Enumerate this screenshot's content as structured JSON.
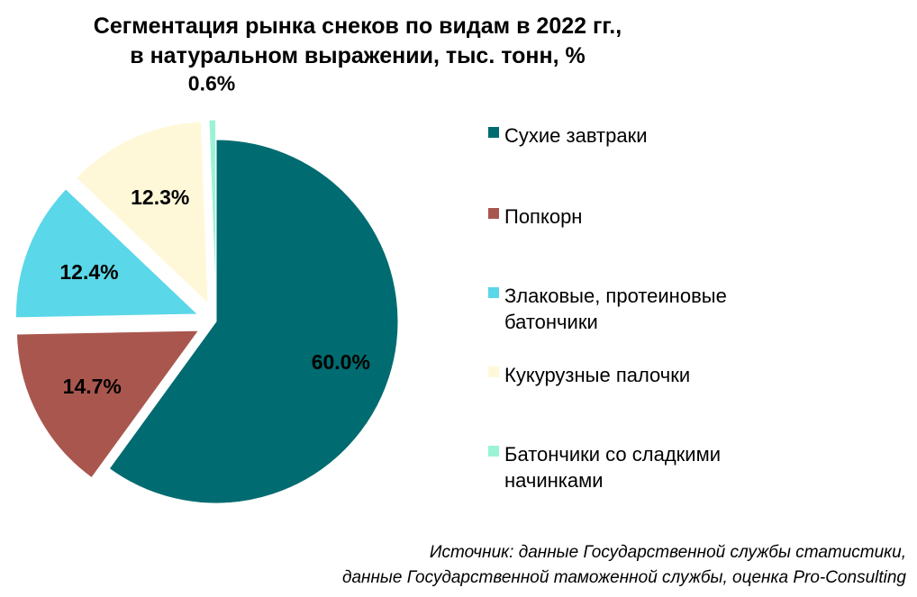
{
  "chart_data": {
    "type": "pie",
    "title_lines": [
      "Сегментация рынка снеков по видам в 2022 гг.,",
      "в натуральном выражении, тыс. тонн, %"
    ],
    "slices": [
      {
        "name": "Сухие завтраки",
        "value": 60.0,
        "label": "60.0%",
        "color": "#006B70",
        "exploded": false,
        "legend_lines": [
          "Сухие завтраки"
        ]
      },
      {
        "name": "Попкорн",
        "value": 14.7,
        "label": "14.7%",
        "color": "#A9574E",
        "exploded": true,
        "legend_lines": [
          "Попкорн"
        ]
      },
      {
        "name": "Злаковые, протеиновые батончики",
        "value": 12.4,
        "label": "12.4%",
        "color": "#5AD7E8",
        "exploded": true,
        "legend_lines": [
          "Злаковые, протеиновые",
          "батончики"
        ]
      },
      {
        "name": "Кукурузные палочки",
        "value": 12.3,
        "label": "12.3%",
        "color": "#FFF8D8",
        "exploded": true,
        "legend_lines": [
          "Кукурузные палочки"
        ]
      },
      {
        "name": "Батончики со сладкими начинками",
        "value": 0.6,
        "label": "0.6%",
        "color": "#9BF3D6",
        "exploded": true,
        "legend_lines": [
          "Батончики со сладкими",
          "начинками"
        ]
      }
    ],
    "legend_position": "right",
    "source_lines": [
      "Источник: данные Государственной службы статистики,",
      "данные Государственной таможенной службы, оценка Pro-Consulting"
    ]
  }
}
